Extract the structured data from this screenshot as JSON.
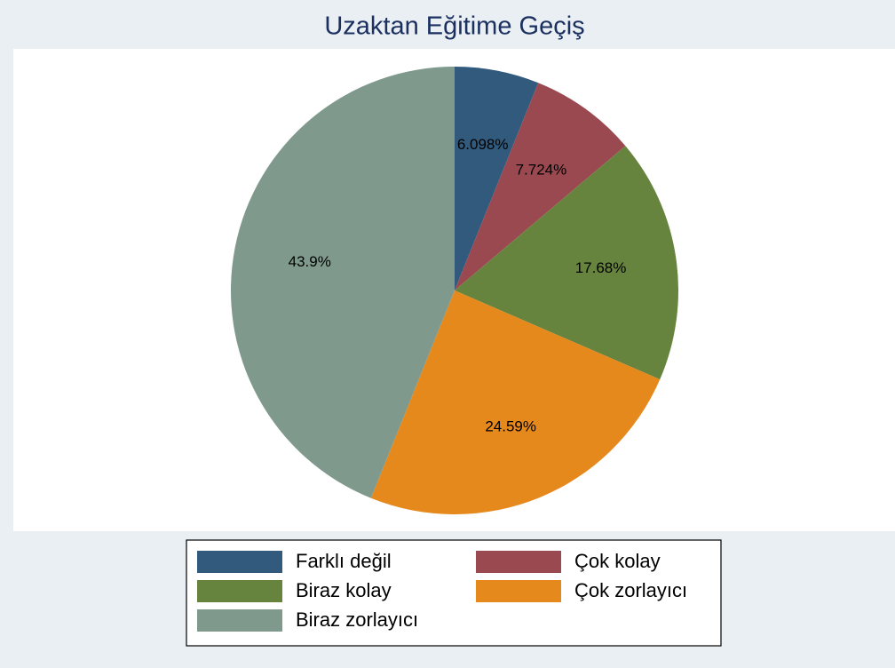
{
  "chart_data": {
    "type": "pie",
    "title": "Uzaktan Eğitime Geçiş",
    "categories": [
      "Farklı değil",
      "Çok kolay",
      "Biraz kolay",
      "Çok zorlayıcı",
      "Biraz zorlayıcı"
    ],
    "values": [
      6.098,
      7.724,
      17.68,
      24.59,
      43.9
    ],
    "value_labels": [
      "6.098%",
      "7.724%",
      "17.68%",
      "24.59%",
      "43.9%"
    ],
    "colors": [
      "#315a7d",
      "#9b4951",
      "#67843f",
      "#e6891c",
      "#7f998d"
    ],
    "legend": "bottom"
  }
}
